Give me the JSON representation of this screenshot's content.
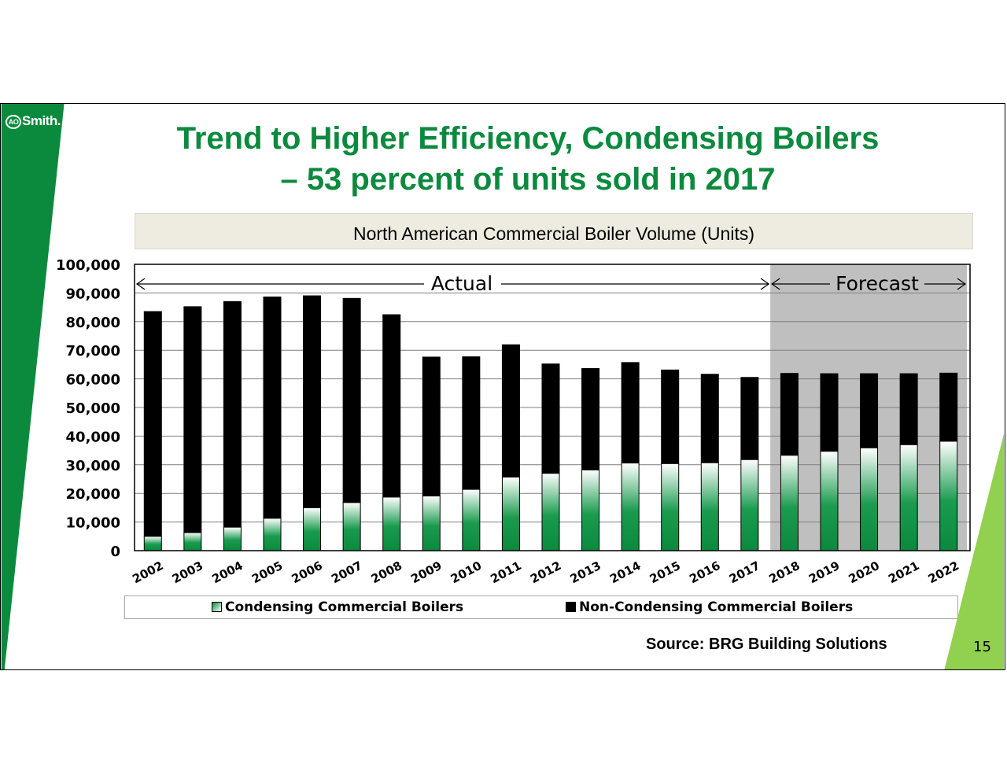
{
  "brand": {
    "logo_text": "Smith.",
    "logo_mark": "AO",
    "colors": {
      "primary_green": "#0b8a3e",
      "light_green": "#92d050",
      "forecast_shade": "#bfbfbf",
      "subtitle_bg": "#eeece1"
    }
  },
  "slide": {
    "title_line1": "Trend to Higher Efficiency, Condensing Boilers",
    "title_line2": "– 53 percent of units sold in 2017",
    "source": "Source: BRG Building Solutions",
    "page_number": "15"
  },
  "chart_data": {
    "type": "bar",
    "stacked": true,
    "title": "North American Commercial Boiler Volume (Units)",
    "xlabel": "",
    "ylabel": "",
    "ylim": [
      0,
      100000
    ],
    "yticks": [
      "0",
      "10,000",
      "20,000",
      "30,000",
      "40,000",
      "50,000",
      "60,000",
      "70,000",
      "80,000",
      "90,000",
      "100,000"
    ],
    "grid": true,
    "categories": [
      "2002",
      "2003",
      "2004",
      "2005",
      "2006",
      "2007",
      "2008",
      "2009",
      "2010",
      "2011",
      "2012",
      "2013",
      "2014",
      "2015",
      "2016",
      "2017",
      "2018",
      "2019",
      "2020",
      "2021",
      "2022"
    ],
    "series": [
      {
        "name": "Condensing Commercial Boilers",
        "color": "#0b8a3e",
        "values": [
          5000,
          6300,
          8200,
          11300,
          15000,
          16800,
          18700,
          19100,
          21400,
          25700,
          27000,
          28200,
          30600,
          30400,
          30700,
          31800,
          33300,
          34700,
          35900,
          37000,
          38200
        ]
      },
      {
        "name": "Non-Condensing Commercial Boilers",
        "color": "#000000",
        "values": [
          78500,
          78900,
          78800,
          77300,
          74000,
          71300,
          63700,
          48500,
          46300,
          46200,
          38200,
          35400,
          35100,
          32700,
          30900,
          28700,
          28600,
          27100,
          25900,
          24800,
          23800
        ]
      }
    ],
    "annotations": {
      "actual_label": "Actual",
      "forecast_label": "Forecast",
      "forecast_start": "2018",
      "forecast_end": "2022"
    },
    "legend_position": "bottom"
  }
}
